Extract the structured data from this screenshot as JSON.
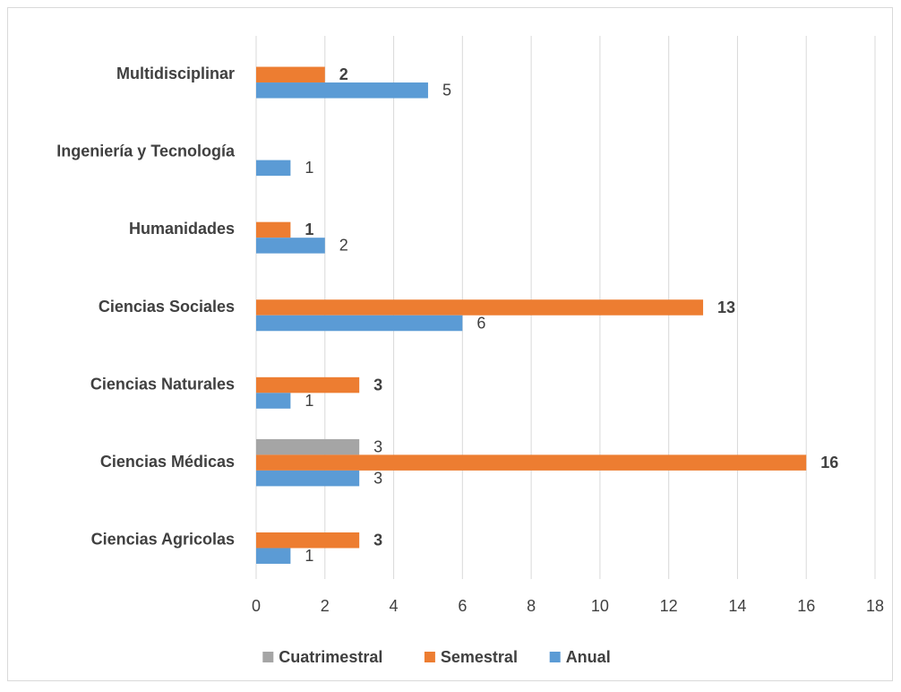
{
  "chart_data": {
    "type": "bar",
    "orientation": "horizontal",
    "categories": [
      "Ciencias Agricolas",
      "Ciencias Médicas",
      "Ciencias Naturales",
      "Ciencias Sociales",
      "Humanidades",
      "Ingeniería y Tecnología",
      "Multidisciplinar"
    ],
    "series": [
      {
        "name": "Cuatrimestral",
        "color": "#a5a5a5",
        "bold_labels": false,
        "values": [
          null,
          3,
          null,
          null,
          null,
          null,
          null
        ]
      },
      {
        "name": "Semestral",
        "color": "#ed7d31",
        "bold_labels": true,
        "values": [
          3,
          16,
          3,
          13,
          1,
          null,
          2
        ]
      },
      {
        "name": "Anual",
        "color": "#5b9bd5",
        "bold_labels": false,
        "values": [
          1,
          3,
          1,
          6,
          2,
          1,
          5
        ]
      }
    ],
    "xlim": [
      0,
      18
    ],
    "xticks": [
      0,
      2,
      4,
      6,
      8,
      10,
      12,
      14,
      16,
      18
    ],
    "grid": true,
    "legend": "bottom"
  }
}
